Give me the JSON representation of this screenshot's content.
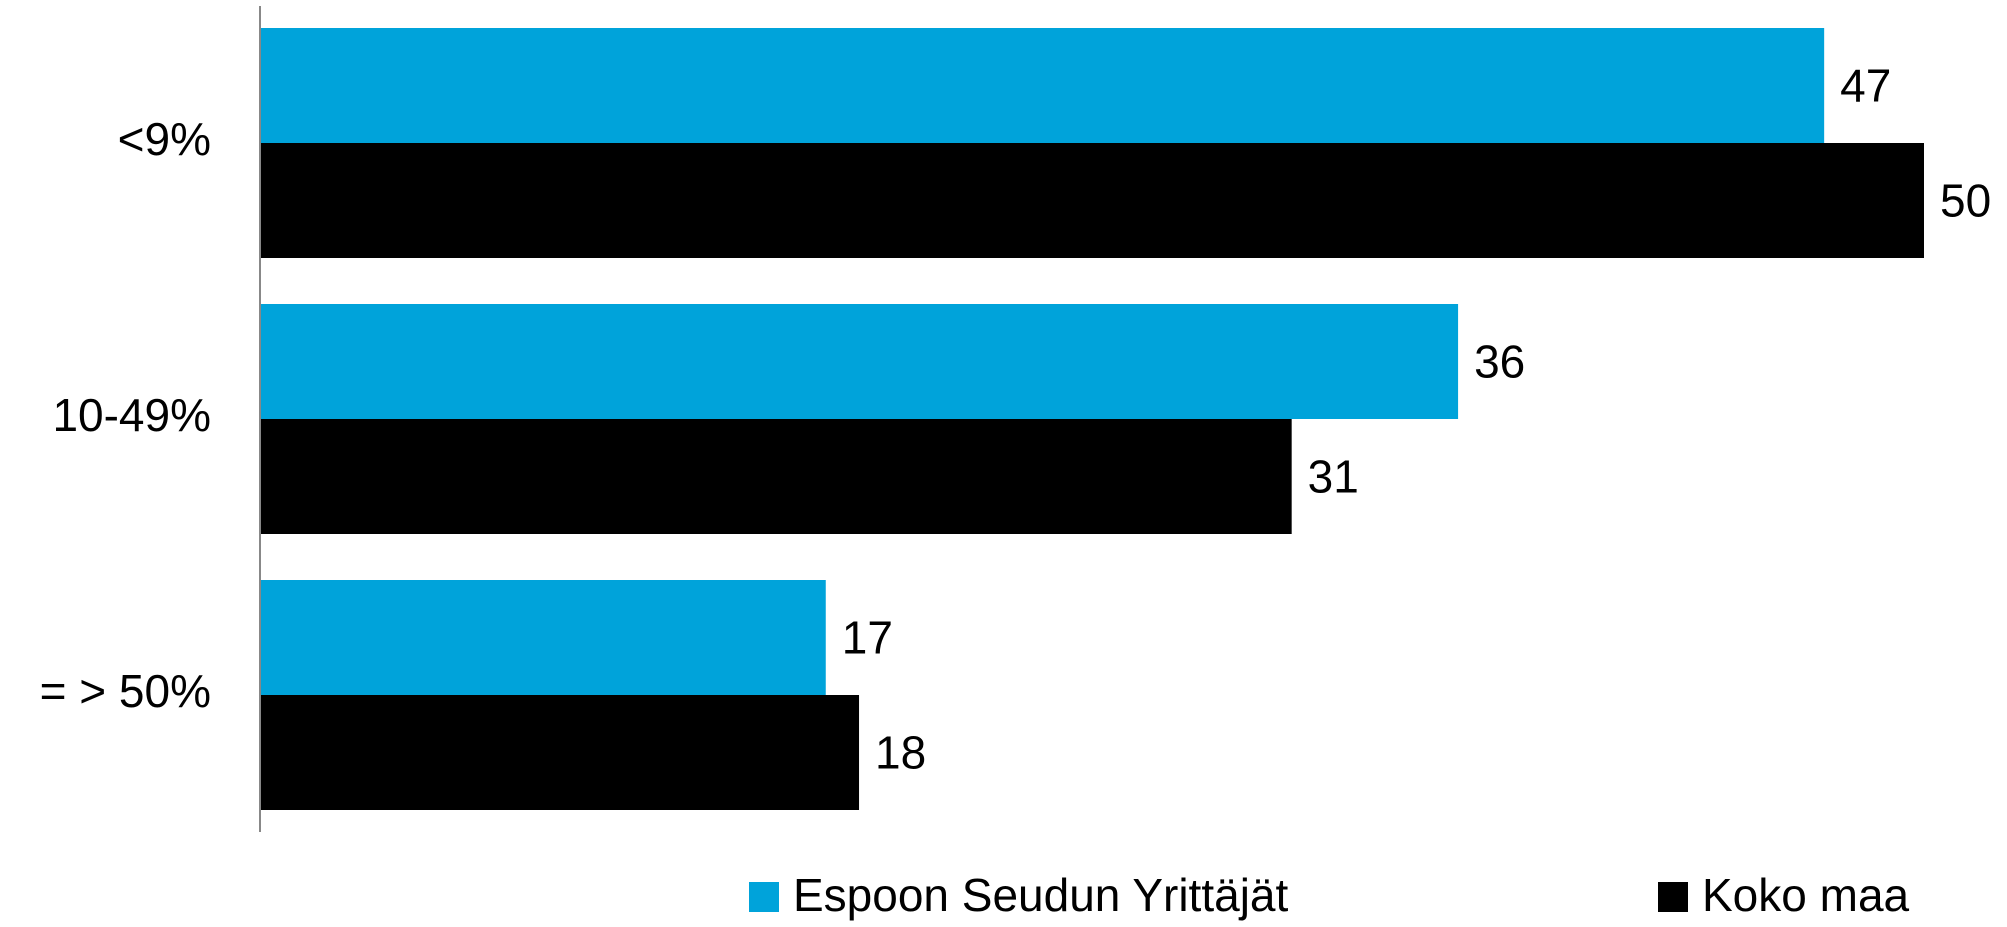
{
  "chart_data": {
    "type": "hbar",
    "categories": [
      "<9%",
      "10-49%",
      "= > 50%"
    ],
    "series": [
      {
        "name": "Espoon Seudun Yrittäjät",
        "color": "#00a3da",
        "values": [
          47,
          36,
          17
        ]
      },
      {
        "name": "Koko maa",
        "color": "#000000",
        "values": [
          50,
          31,
          18
        ]
      }
    ],
    "legend": "bottom"
  }
}
